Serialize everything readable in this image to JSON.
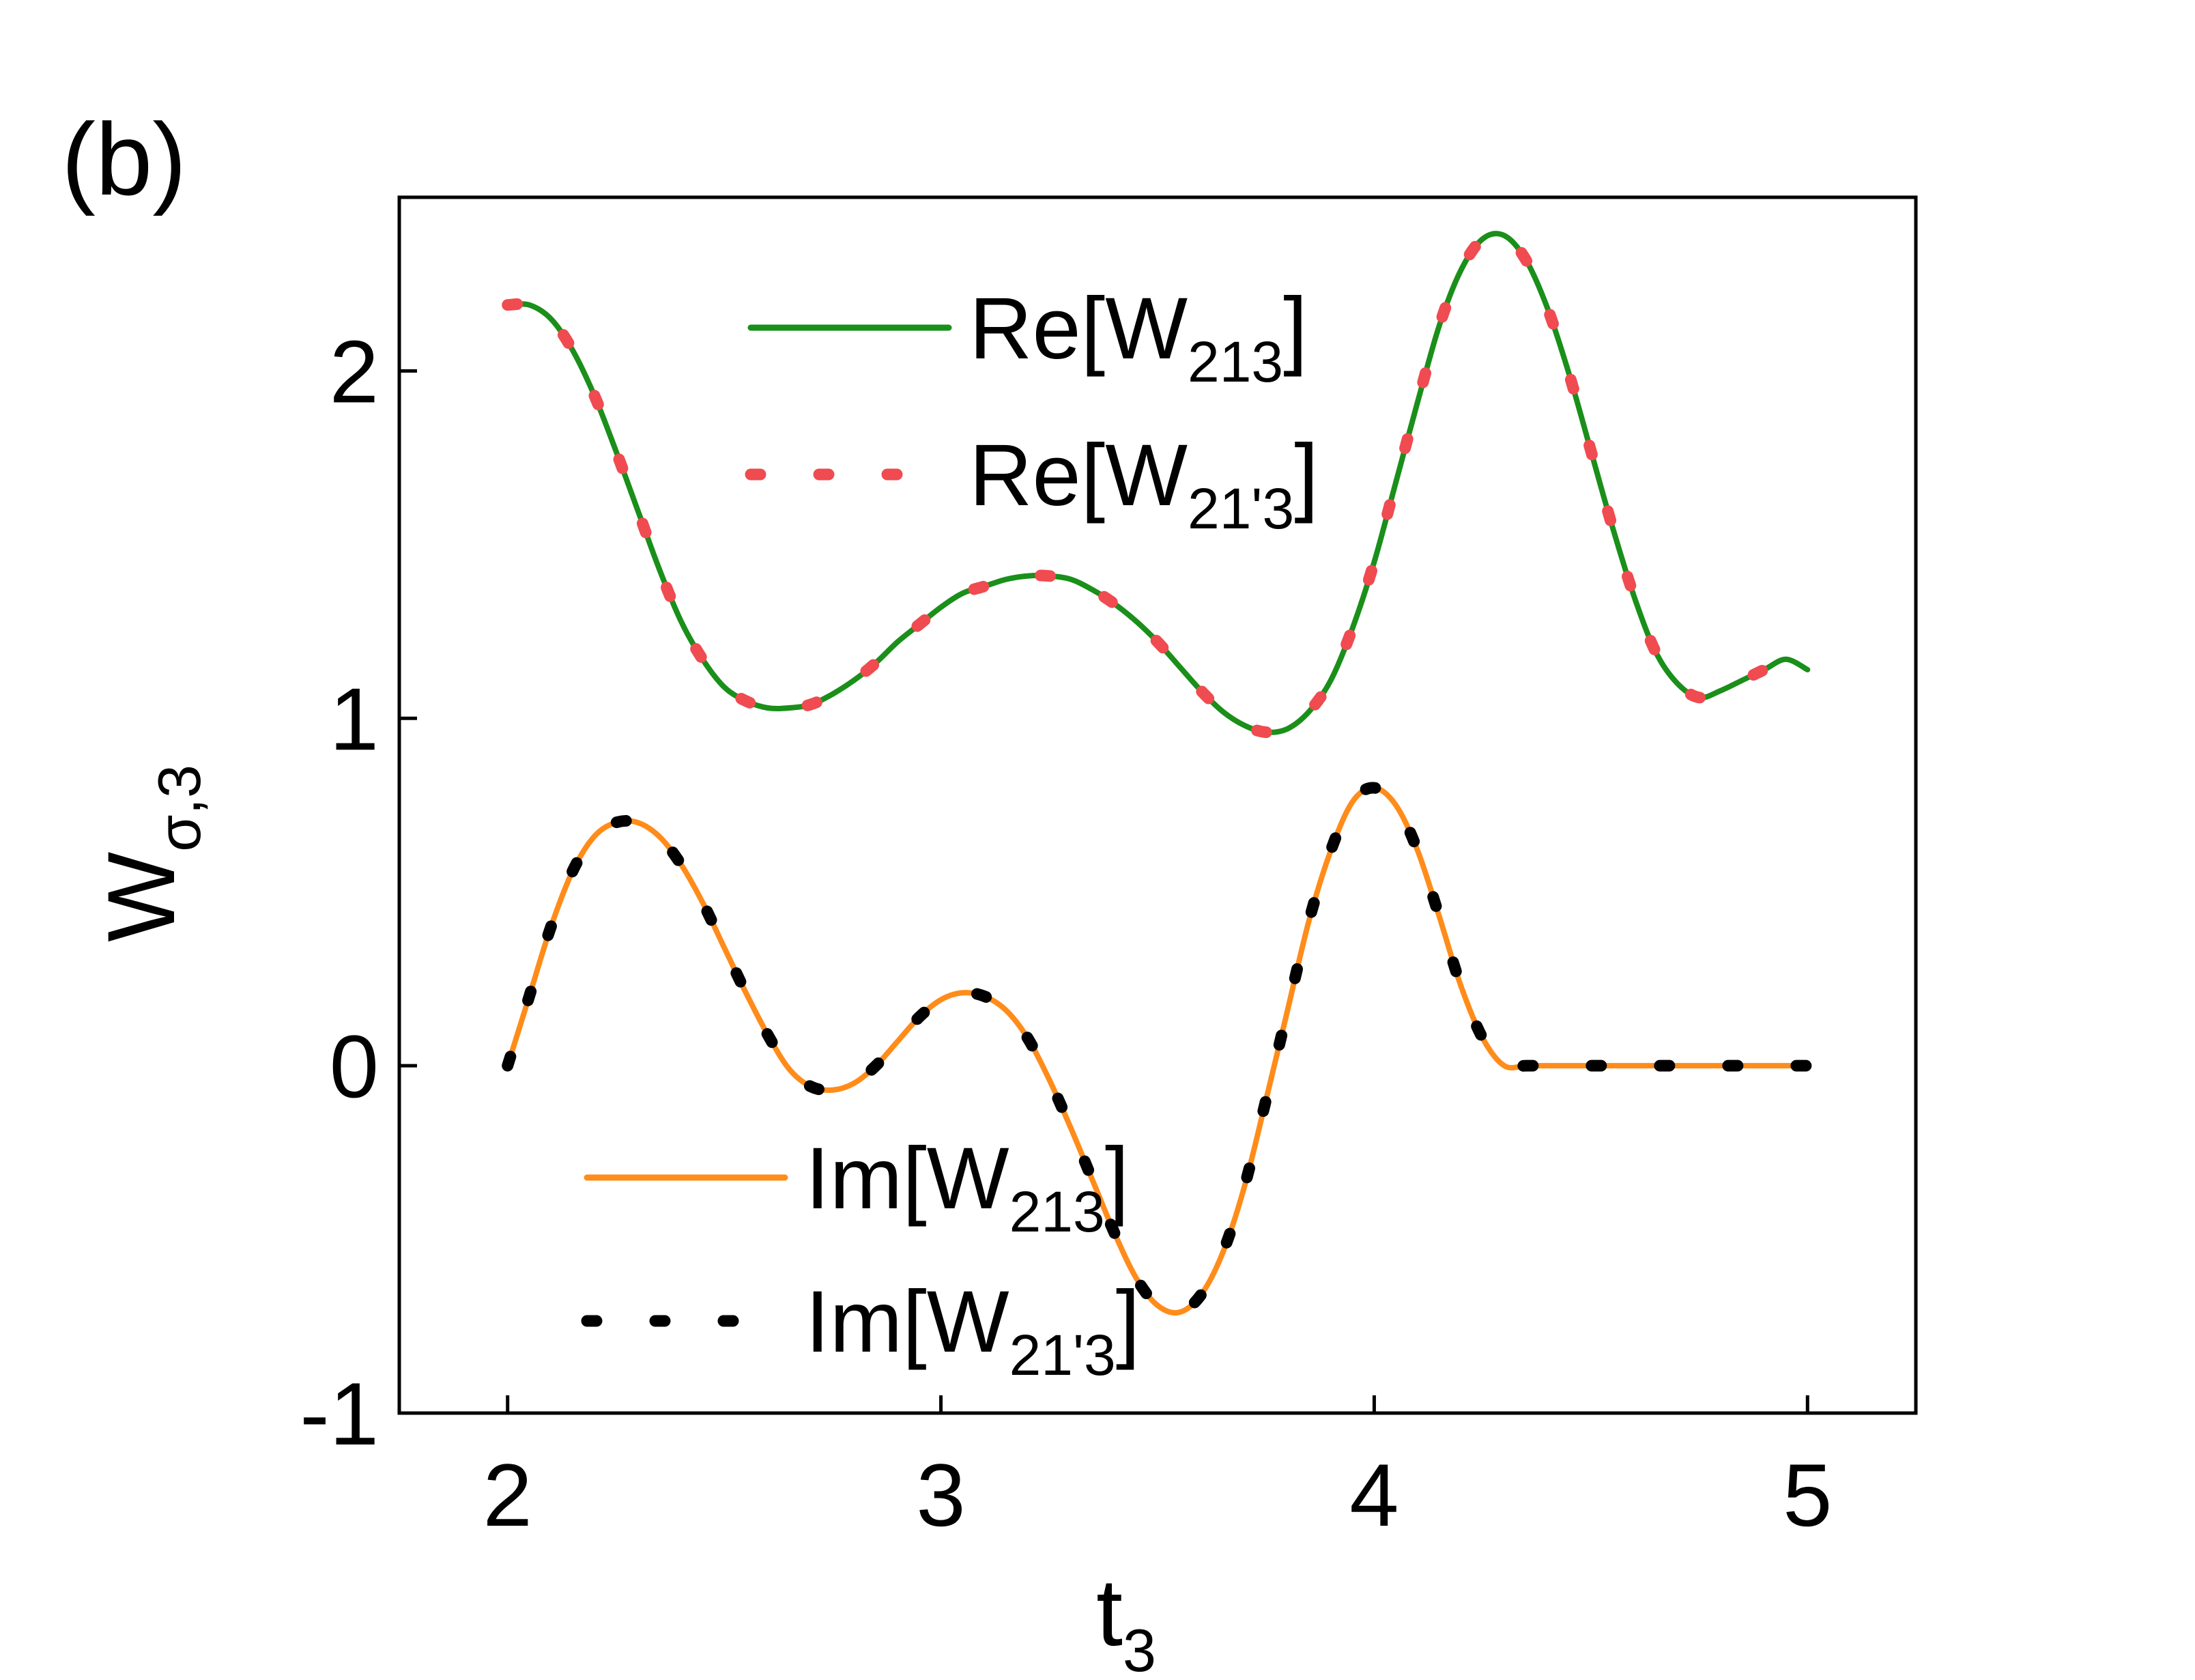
{
  "panel_label": "(b)",
  "colors": {
    "re_solid": "#1a8f1a",
    "re_dotted": "#ef4b50",
    "im_solid": "#ff8c1a",
    "im_dotted": "#000000",
    "axes": "#000000"
  },
  "chart_data": {
    "type": "line",
    "xlabel": "t",
    "xlabel_sub": "3",
    "ylabel": "W",
    "ylabel_sub": "σ,3",
    "xlim": [
      1.75,
      5.25
    ],
    "ylim": [
      -1.0,
      2.5
    ],
    "x_ticks": [
      2,
      3,
      4,
      5
    ],
    "x_tick_labels": [
      "2",
      "3",
      "4",
      "5"
    ],
    "y_ticks": [
      -1,
      0,
      1,
      2
    ],
    "y_tick_labels": [
      "-1",
      "0",
      "1",
      "2"
    ],
    "grid": false,
    "legends": [
      {
        "placement": "top-center",
        "entries": [
          {
            "text": "Re[W",
            "sub": "213",
            "close": "]",
            "series": 0
          },
          {
            "text": "Re[W",
            "sub": "21'3",
            "close": "]",
            "series": 1
          }
        ]
      },
      {
        "placement": "bottom-center",
        "entries": [
          {
            "text": "Im[W",
            "sub": "213",
            "close": "]",
            "series": 2
          },
          {
            "text": "Im[W",
            "sub": "21'3",
            "close": "]",
            "series": 3
          }
        ]
      }
    ],
    "series": [
      {
        "name": "Re[W213]",
        "style": "solid",
        "color_key": "re_solid",
        "x": [
          2.0,
          2.05,
          2.1,
          2.15,
          2.2,
          2.25,
          2.3,
          2.35,
          2.4,
          2.45,
          2.5,
          2.55,
          2.6,
          2.65,
          2.7,
          2.75,
          2.8,
          2.85,
          2.9,
          2.95,
          3.0,
          3.05,
          3.1,
          3.15,
          3.2,
          3.25,
          3.3,
          3.35,
          3.4,
          3.45,
          3.5,
          3.55,
          3.6,
          3.65,
          3.7,
          3.75,
          3.8,
          3.85,
          3.9,
          3.95,
          4.0,
          4.05,
          4.1,
          4.15,
          4.2,
          4.25,
          4.3,
          4.35,
          4.4,
          4.45,
          4.5,
          4.55,
          4.6,
          4.65,
          4.7,
          4.75,
          4.8,
          4.85,
          4.9,
          4.95,
          5.0
        ],
        "y": [
          2.19,
          2.19,
          2.15,
          2.06,
          1.93,
          1.77,
          1.6,
          1.43,
          1.28,
          1.17,
          1.09,
          1.05,
          1.03,
          1.03,
          1.04,
          1.07,
          1.11,
          1.16,
          1.22,
          1.27,
          1.32,
          1.36,
          1.38,
          1.4,
          1.41,
          1.41,
          1.4,
          1.37,
          1.33,
          1.28,
          1.22,
          1.15,
          1.08,
          1.02,
          0.98,
          0.96,
          0.97,
          1.02,
          1.11,
          1.26,
          1.45,
          1.68,
          1.91,
          2.13,
          2.29,
          2.38,
          2.39,
          2.32,
          2.18,
          1.99,
          1.77,
          1.55,
          1.35,
          1.19,
          1.1,
          1.06,
          1.08,
          1.11,
          1.14,
          1.17,
          1.14
        ]
      },
      {
        "name": "Re[W21'3]",
        "style": "dotted",
        "color_key": "re_dotted",
        "x": [
          2.0,
          2.05,
          2.1,
          2.15,
          2.2,
          2.25,
          2.3,
          2.35,
          2.4,
          2.45,
          2.5,
          2.55,
          2.6,
          2.65,
          2.7,
          2.75,
          2.8,
          2.85,
          2.9,
          2.95,
          3.0,
          3.05,
          3.1,
          3.15,
          3.2,
          3.25,
          3.3,
          3.35,
          3.4,
          3.45,
          3.5,
          3.55,
          3.6,
          3.65,
          3.7,
          3.75,
          3.8,
          3.85,
          3.9,
          3.95,
          4.0,
          4.05,
          4.1,
          4.15,
          4.2,
          4.25,
          4.3,
          4.35,
          4.4,
          4.45,
          4.5,
          4.55,
          4.6,
          4.65,
          4.7,
          4.75,
          4.8,
          4.85,
          4.9,
          4.95,
          5.0
        ],
        "y": [
          2.19,
          2.19,
          2.15,
          2.06,
          1.93,
          1.77,
          1.6,
          1.43,
          1.28,
          1.17,
          1.09,
          1.05,
          1.03,
          1.03,
          1.04,
          1.07,
          1.11,
          1.16,
          1.22,
          1.27,
          1.32,
          1.36,
          1.38,
          1.4,
          1.41,
          1.41,
          1.4,
          1.37,
          1.33,
          1.28,
          1.22,
          1.15,
          1.08,
          1.02,
          0.98,
          0.96,
          0.97,
          1.02,
          1.11,
          1.26,
          1.45,
          1.68,
          1.91,
          2.13,
          2.29,
          2.38,
          2.39,
          2.32,
          2.18,
          1.99,
          1.77,
          1.55,
          1.35,
          1.19,
          1.1,
          1.06,
          1.08,
          1.11,
          1.14,
          1.17,
          1.14
        ]
      },
      {
        "name": "Im[W213]",
        "style": "solid",
        "color_key": "im_solid",
        "x": [
          2.0,
          2.05,
          2.1,
          2.15,
          2.2,
          2.25,
          2.3,
          2.35,
          2.4,
          2.45,
          2.5,
          2.55,
          2.6,
          2.65,
          2.7,
          2.75,
          2.8,
          2.85,
          2.9,
          2.95,
          3.0,
          3.05,
          3.1,
          3.15,
          3.2,
          3.25,
          3.3,
          3.35,
          3.4,
          3.45,
          3.5,
          3.55,
          3.6,
          3.65,
          3.7,
          3.75,
          3.8,
          3.85,
          3.9,
          3.95,
          4.0,
          4.05,
          4.1,
          4.15,
          4.2,
          4.25,
          4.3,
          4.35,
          4.4,
          4.45,
          4.5,
          4.55,
          4.6,
          4.65,
          4.7,
          4.75,
          4.8,
          4.85,
          4.9,
          4.95,
          5.0
        ],
        "y": [
          0.0,
          0.2,
          0.4,
          0.56,
          0.66,
          0.7,
          0.7,
          0.66,
          0.58,
          0.47,
          0.34,
          0.21,
          0.09,
          -0.01,
          -0.06,
          -0.07,
          -0.05,
          0.0,
          0.07,
          0.14,
          0.19,
          0.21,
          0.2,
          0.16,
          0.08,
          -0.04,
          -0.18,
          -0.33,
          -0.48,
          -0.61,
          -0.69,
          -0.71,
          -0.66,
          -0.54,
          -0.35,
          -0.1,
          0.16,
          0.42,
          0.62,
          0.76,
          0.8,
          0.75,
          0.62,
          0.43,
          0.23,
          0.08,
          0.0,
          0.0,
          0.0,
          0.0,
          0.0,
          0.0,
          0.0,
          0.0,
          0.0,
          0.0,
          0.0,
          0.0,
          0.0,
          0.0,
          0.0
        ]
      },
      {
        "name": "Im[W21'3]",
        "style": "dotted",
        "color_key": "im_dotted",
        "x": [
          2.0,
          2.05,
          2.1,
          2.15,
          2.2,
          2.25,
          2.3,
          2.35,
          2.4,
          2.45,
          2.5,
          2.55,
          2.6,
          2.65,
          2.7,
          2.75,
          2.8,
          2.85,
          2.9,
          2.95,
          3.0,
          3.05,
          3.1,
          3.15,
          3.2,
          3.25,
          3.3,
          3.35,
          3.4,
          3.45,
          3.5,
          3.55,
          3.6,
          3.65,
          3.7,
          3.75,
          3.8,
          3.85,
          3.9,
          3.95,
          4.0,
          4.05,
          4.1,
          4.15,
          4.2,
          4.25,
          4.3,
          4.35,
          4.4,
          4.45,
          4.5,
          4.55,
          4.6,
          4.65,
          4.7,
          4.75,
          4.8,
          4.85,
          4.9,
          4.95,
          5.0
        ],
        "y": [
          0.0,
          0.2,
          0.4,
          0.56,
          0.66,
          0.7,
          0.7,
          0.66,
          0.58,
          0.47,
          0.34,
          0.21,
          0.09,
          -0.01,
          -0.06,
          -0.07,
          -0.05,
          0.0,
          0.07,
          0.14,
          0.19,
          0.21,
          0.2,
          0.16,
          0.08,
          -0.04,
          -0.18,
          -0.33,
          -0.48,
          -0.61,
          -0.69,
          -0.71,
          -0.66,
          -0.54,
          -0.35,
          -0.1,
          0.16,
          0.42,
          0.62,
          0.76,
          0.8,
          0.75,
          0.62,
          0.43,
          0.23,
          0.08,
          0.0,
          0.0,
          0.0,
          0.0,
          0.0,
          0.0,
          0.0,
          0.0,
          0.0,
          0.0,
          0.0,
          0.0,
          0.0,
          0.0,
          0.0
        ]
      }
    ]
  }
}
